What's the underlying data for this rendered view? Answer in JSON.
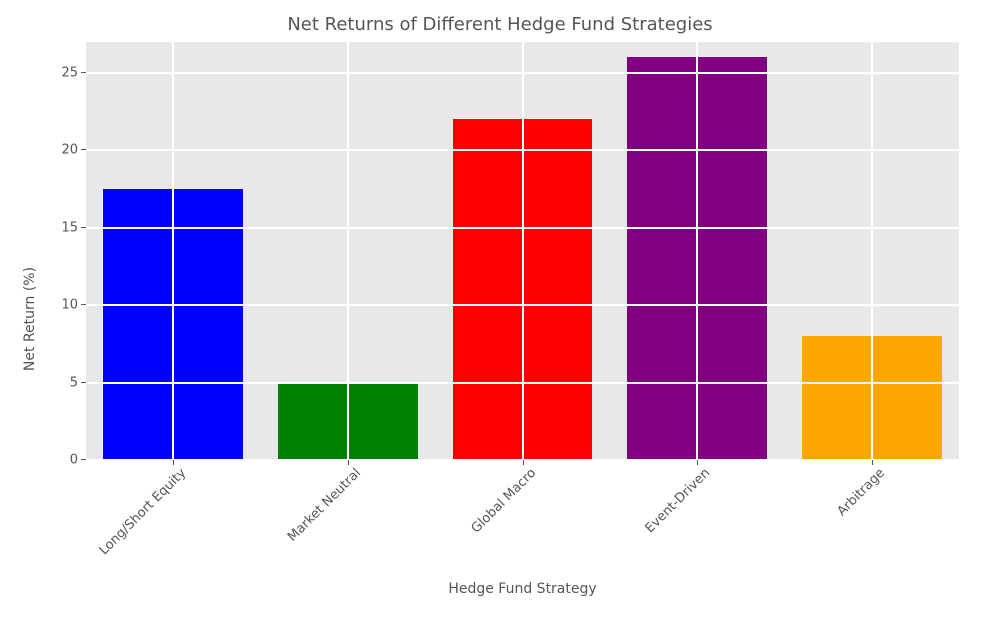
{
  "chart": {
    "type": "bar",
    "title": "Net Returns of Different Hedge Fund Strategies",
    "title_fontsize": 18,
    "title_color": "#555555",
    "xlabel": "Hedge Fund Strategy",
    "ylabel": "Net Return (%)",
    "label_fontsize": 14,
    "label_color": "#555555",
    "tick_fontsize": 13,
    "tick_color": "#555555",
    "background_color": "#e8e8e8",
    "grid_color": "#ffffff",
    "grid_linewidth": 2,
    "categories": [
      "Long/Short Equity",
      "Market Neutral",
      "Global Macro",
      "Event-Driven",
      "Arbitrage"
    ],
    "values": [
      17.5,
      5,
      22,
      26,
      8
    ],
    "bar_colors": [
      "#0000ff",
      "#008000",
      "#ff0000",
      "#800080",
      "#ffa500"
    ],
    "ylim": [
      0,
      27
    ],
    "yticks": [
      0,
      5,
      10,
      15,
      20,
      25
    ],
    "xlim": [
      -0.5,
      4.5
    ],
    "bar_width": 0.8,
    "xtick_rotation": 45
  }
}
